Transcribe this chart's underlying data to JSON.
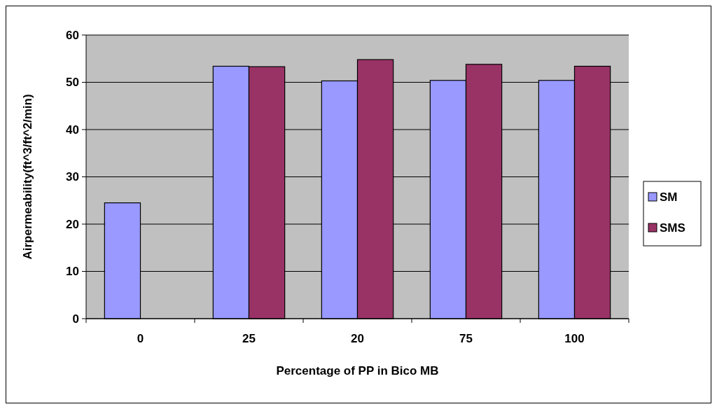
{
  "chart_data": {
    "type": "bar",
    "xlabel": "Percentage of PP in Bico MB",
    "ylabel": "Airpermeability(ft^3/ft^2/min)",
    "categories": [
      "0",
      "25",
      "20",
      "75",
      "100"
    ],
    "series": [
      {
        "name": "SM",
        "color": "#9999ff",
        "values": [
          24.5,
          53.4,
          50.3,
          50.4,
          50.4
        ]
      },
      {
        "name": "SMS",
        "color": "#993366",
        "values": [
          null,
          53.3,
          54.8,
          53.8,
          53.4
        ]
      }
    ],
    "ylim": [
      0,
      60
    ],
    "yticks": [
      0,
      10,
      20,
      30,
      40,
      50,
      60
    ],
    "grid": "y",
    "legend": "right"
  }
}
